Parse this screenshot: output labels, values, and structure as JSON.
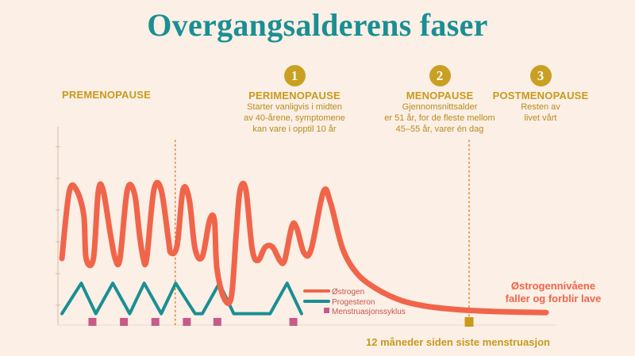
{
  "title": "Overgangsalderens faser",
  "phases": [
    {
      "badge": "",
      "name": "PREMENOPAUSE",
      "desc": []
    },
    {
      "badge": "1",
      "name": "PERIMENOPAUSE",
      "desc": [
        "Starter vanligvis i midten",
        "av 40-årene, symptomene",
        "kan vare i opptil 10 år"
      ]
    },
    {
      "badge": "2",
      "name": "MENOPAUSE",
      "desc": [
        "Gjennomsnittsalder",
        "er 51 år, for de fleste mellom",
        "45–55 år, varer én dag"
      ]
    },
    {
      "badge": "3",
      "name": "POSTMENOPAUSE",
      "desc": [
        "Resten av",
        "livet vårt"
      ]
    }
  ],
  "chart_data": {
    "type": "line",
    "description_units": "x = time in relative units 0–100; y = relative hormone level 0–100",
    "axis_ticks": 6,
    "series": [
      {
        "name": "Østrogen",
        "color": "#f0654a",
        "points": [
          [
            0,
            35
          ],
          [
            1.5,
            70
          ],
          [
            3,
            71
          ],
          [
            4.5,
            58
          ],
          [
            5,
            35
          ],
          [
            6.5,
            35
          ],
          [
            7.5,
            70
          ],
          [
            8.5,
            71
          ],
          [
            10,
            48
          ],
          [
            11,
            35
          ],
          [
            12,
            35
          ],
          [
            13.5,
            71
          ],
          [
            15,
            69
          ],
          [
            16,
            48
          ],
          [
            16.8,
            35
          ],
          [
            17.5,
            35
          ],
          [
            19,
            71
          ],
          [
            20.5,
            71
          ],
          [
            22,
            45
          ],
          [
            22.5,
            38
          ],
          [
            23.8,
            42
          ],
          [
            25,
            71
          ],
          [
            26.3,
            66
          ],
          [
            27.5,
            40
          ],
          [
            29,
            36
          ],
          [
            30.5,
            55
          ],
          [
            31.5,
            55
          ],
          [
            32,
            30
          ],
          [
            33.5,
            14
          ],
          [
            35,
            15
          ],
          [
            36,
            48
          ],
          [
            36.8,
            71
          ],
          [
            38,
            71
          ],
          [
            39.3,
            40
          ],
          [
            40.5,
            34
          ],
          [
            42,
            41
          ],
          [
            43.5,
            41
          ],
          [
            45,
            34
          ],
          [
            46,
            34
          ],
          [
            47.5,
            52
          ],
          [
            48.5,
            51
          ],
          [
            50,
            38
          ],
          [
            51.5,
            40
          ],
          [
            54,
            70
          ],
          [
            55.5,
            64
          ],
          [
            58,
            40
          ],
          [
            61,
            27
          ],
          [
            65,
            19
          ],
          [
            70,
            13
          ],
          [
            75,
            10
          ],
          [
            80,
            8.5
          ],
          [
            85,
            7.6
          ],
          [
            90,
            7.1
          ],
          [
            95,
            6.8
          ],
          [
            100,
            6.6
          ]
        ]
      },
      {
        "name": "Progesteron",
        "color": "#1a8f93",
        "points": [
          [
            0,
            6
          ],
          [
            4,
            22
          ],
          [
            7,
            6
          ],
          [
            10.5,
            22
          ],
          [
            14,
            6
          ],
          [
            17,
            22
          ],
          [
            20.5,
            6
          ],
          [
            23.5,
            22
          ],
          [
            27.5,
            6
          ],
          [
            29,
            6
          ],
          [
            32.5,
            22
          ],
          [
            35.5,
            6
          ],
          [
            43,
            6
          ],
          [
            46.5,
            22
          ],
          [
            49.5,
            6
          ]
        ]
      },
      {
        "name": "Menstruasjonssyklus",
        "color": "#c85a8a",
        "markers": [
          6.3,
          12.8,
          19.3,
          25.8,
          32.1,
          47.8
        ]
      }
    ],
    "milestone_marker": {
      "x": 84.1,
      "color": "#c89a1c"
    },
    "dotted_lines_x": [
      23.4,
      84.1
    ],
    "annotations": {
      "right_note": [
        "Østrogennivåene",
        "faller og forblir lave"
      ],
      "bottom_note": "12 måneder siden siste menstruasjon"
    }
  },
  "colors": {
    "background": "#fbefe6",
    "title": "#1a8f93",
    "gold": "#c89a1c",
    "estrogen": "#f0654a",
    "progesterone": "#1a8f93",
    "menstruation": "#c85a8a"
  }
}
